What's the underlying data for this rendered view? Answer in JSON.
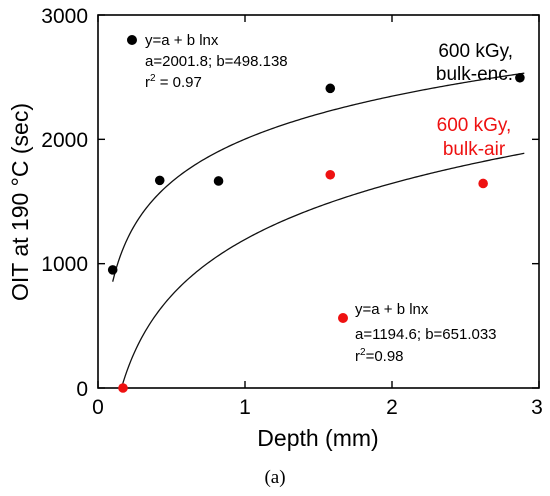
{
  "chart_data": {
    "type": "scatter",
    "xlabel": "Depth (mm)",
    "ylabel": "OIT at 190 °C (sec)",
    "xlim": [
      0,
      3
    ],
    "ylim": [
      0,
      3000
    ],
    "x_ticks": [
      "0",
      "1",
      "2",
      "3"
    ],
    "y_ticks": [
      "0",
      "1000",
      "2000",
      "3000"
    ],
    "grid": false,
    "series": [
      {
        "name": "600 kGy, bulk-enc.",
        "label_lines": [
          "600 kGy,",
          "bulk-enc."
        ],
        "color": "#000000",
        "x": [
          0.1,
          0.42,
          0.82,
          1.58,
          2.87
        ],
        "y": [
          950,
          1670,
          1665,
          2410,
          2495
        ],
        "fit": {
          "a": 2001.8,
          "b": 498.138
        },
        "equation": {
          "line1": "y=a + b lnx",
          "line2": "a=2001.8; b=498.138",
          "r2_prefix": "r",
          "r2_sup": "2",
          "r2_value": " = 0.97"
        }
      },
      {
        "name": "600 kGy, bulk-air",
        "label_lines": [
          "600 kGy,",
          "bulk-air"
        ],
        "color": "#ee1111",
        "x": [
          0.17,
          1.58,
          2.62
        ],
        "y": [
          0,
          1715,
          1645
        ],
        "fit": {
          "a": 1194.6,
          "b": 651.033
        },
        "equation": {
          "line1": "y=a + b lnx",
          "line2": "a=1194.6; b=651.033",
          "r2_prefix": "r",
          "r2_sup": "2",
          "r2_value": "=0.98"
        }
      }
    ]
  },
  "caption": "(a)"
}
